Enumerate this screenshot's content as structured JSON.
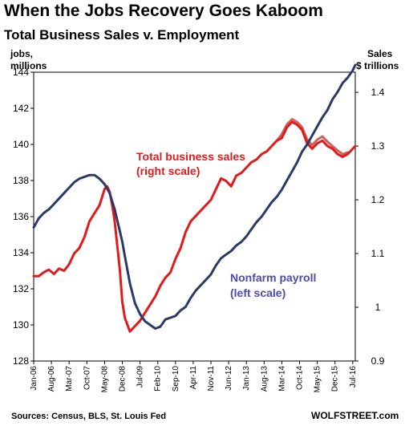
{
  "title": "When the Jobs Recovery Goes Kaboom",
  "subtitle": "Total Business Sales v. Employment",
  "source": "Sources: Census, BLS, St. Louis Fed",
  "brand": "WOLFSTREET.com",
  "chart_data": {
    "type": "line",
    "left_axis": {
      "label_line1": "jobs,",
      "label_line2": "millions",
      "ticks": [
        128,
        130,
        132,
        134,
        136,
        138,
        140,
        142,
        144
      ],
      "range": [
        128,
        144
      ]
    },
    "right_axis": {
      "label_line1": "Sales",
      "label_line2": "$ trillions",
      "ticks": [
        0.9,
        1,
        1.1,
        1.2,
        1.3,
        1.4
      ],
      "tick_labels": [
        "0.9",
        "1",
        "1.1",
        "1.2",
        "1.3",
        "1.4"
      ],
      "range": [
        0.9,
        1.4375
      ]
    },
    "x_ticks": [
      "Jan-06",
      "Aug-06",
      "Mar-07",
      "Oct-07",
      "May-08",
      "Dec-08",
      "Jul-09",
      "Feb-10",
      "Sep-10",
      "Apr-11",
      "Nov-11",
      "Jun-12",
      "Jan-13",
      "Aug-13",
      "Mar-14",
      "Oct-14",
      "May-15",
      "Dec-15",
      "Jul-16"
    ],
    "x_range": [
      "2006-01",
      "2016-08"
    ],
    "annotations": {
      "sales_line1": "Total business sales",
      "sales_line2": "(right scale)",
      "payroll_line1": "Nonfarm payroll",
      "payroll_line2": "(left scale)"
    },
    "series": [
      {
        "name": "Nonfarm payroll",
        "axis": "left",
        "color": "#2b3a67",
        "points": [
          [
            "2006-01",
            135.4
          ],
          [
            "2006-03",
            135.9
          ],
          [
            "2006-05",
            136.2
          ],
          [
            "2006-07",
            136.4
          ],
          [
            "2006-09",
            136.7
          ],
          [
            "2006-11",
            137.0
          ],
          [
            "2007-01",
            137.3
          ],
          [
            "2007-03",
            137.6
          ],
          [
            "2007-05",
            137.9
          ],
          [
            "2007-07",
            138.1
          ],
          [
            "2007-09",
            138.2
          ],
          [
            "2007-11",
            138.3
          ],
          [
            "2008-01",
            138.3
          ],
          [
            "2008-03",
            138.1
          ],
          [
            "2008-05",
            137.8
          ],
          [
            "2008-07",
            137.3
          ],
          [
            "2008-09",
            136.4
          ],
          [
            "2008-11",
            135.2
          ],
          [
            "2008-12",
            134.6
          ],
          [
            "2009-01",
            133.8
          ],
          [
            "2009-03",
            132.3
          ],
          [
            "2009-05",
            131.2
          ],
          [
            "2009-07",
            130.6
          ],
          [
            "2009-09",
            130.2
          ],
          [
            "2009-11",
            130.0
          ],
          [
            "2010-01",
            129.8
          ],
          [
            "2010-03",
            129.9
          ],
          [
            "2010-05",
            130.3
          ],
          [
            "2010-07",
            130.4
          ],
          [
            "2010-09",
            130.5
          ],
          [
            "2010-11",
            130.8
          ],
          [
            "2011-01",
            131.0
          ],
          [
            "2011-03",
            131.5
          ],
          [
            "2011-05",
            131.9
          ],
          [
            "2011-07",
            132.2
          ],
          [
            "2011-09",
            132.5
          ],
          [
            "2011-11",
            132.8
          ],
          [
            "2012-01",
            133.3
          ],
          [
            "2012-03",
            133.7
          ],
          [
            "2012-05",
            133.9
          ],
          [
            "2012-07",
            134.1
          ],
          [
            "2012-09",
            134.4
          ],
          [
            "2012-11",
            134.6
          ],
          [
            "2013-01",
            134.9
          ],
          [
            "2013-03",
            135.3
          ],
          [
            "2013-05",
            135.7
          ],
          [
            "2013-07",
            136.0
          ],
          [
            "2013-09",
            136.4
          ],
          [
            "2013-11",
            136.8
          ],
          [
            "2014-01",
            137.1
          ],
          [
            "2014-03",
            137.5
          ],
          [
            "2014-05",
            138.0
          ],
          [
            "2014-07",
            138.5
          ],
          [
            "2014-09",
            139.0
          ],
          [
            "2014-11",
            139.6
          ],
          [
            "2015-01",
            140.0
          ],
          [
            "2015-03",
            140.5
          ],
          [
            "2015-05",
            141.0
          ],
          [
            "2015-07",
            141.5
          ],
          [
            "2015-09",
            141.9
          ],
          [
            "2015-11",
            142.5
          ],
          [
            "2016-01",
            142.9
          ],
          [
            "2016-03",
            143.4
          ],
          [
            "2016-05",
            143.7
          ],
          [
            "2016-07",
            144.1
          ],
          [
            "2016-08",
            144.4
          ]
        ]
      },
      {
        "name": "Total business sales",
        "axis": "right",
        "color": "#e31a1c",
        "points": [
          [
            "2006-01",
            1.058
          ],
          [
            "2006-03",
            1.058
          ],
          [
            "2006-05",
            1.065
          ],
          [
            "2006-07",
            1.07
          ],
          [
            "2006-09",
            1.062
          ],
          [
            "2006-11",
            1.072
          ],
          [
            "2007-01",
            1.068
          ],
          [
            "2007-03",
            1.08
          ],
          [
            "2007-05",
            1.1
          ],
          [
            "2007-07",
            1.11
          ],
          [
            "2007-09",
            1.13
          ],
          [
            "2007-11",
            1.16
          ],
          [
            "2008-01",
            1.175
          ],
          [
            "2008-03",
            1.19
          ],
          [
            "2008-05",
            1.22
          ],
          [
            "2008-06",
            1.225
          ],
          [
            "2008-07",
            1.215
          ],
          [
            "2008-08",
            1.19
          ],
          [
            "2008-09",
            1.16
          ],
          [
            "2008-11",
            1.07
          ],
          [
            "2008-12",
            1.01
          ],
          [
            "2009-01",
            0.98
          ],
          [
            "2009-03",
            0.955
          ],
          [
            "2009-05",
            0.965
          ],
          [
            "2009-07",
            0.975
          ],
          [
            "2009-09",
            0.99
          ],
          [
            "2009-11",
            1.005
          ],
          [
            "2010-01",
            1.02
          ],
          [
            "2010-03",
            1.04
          ],
          [
            "2010-05",
            1.055
          ],
          [
            "2010-07",
            1.065
          ],
          [
            "2010-09",
            1.09
          ],
          [
            "2010-11",
            1.11
          ],
          [
            "2011-01",
            1.14
          ],
          [
            "2011-03",
            1.16
          ],
          [
            "2011-05",
            1.17
          ],
          [
            "2011-07",
            1.18
          ],
          [
            "2011-09",
            1.19
          ],
          [
            "2011-11",
            1.2
          ],
          [
            "2012-01",
            1.22
          ],
          [
            "2012-03",
            1.24
          ],
          [
            "2012-05",
            1.235
          ],
          [
            "2012-07",
            1.225
          ],
          [
            "2012-09",
            1.245
          ],
          [
            "2012-11",
            1.25
          ],
          [
            "2013-01",
            1.26
          ],
          [
            "2013-03",
            1.27
          ],
          [
            "2013-05",
            1.275
          ],
          [
            "2013-07",
            1.285
          ],
          [
            "2013-09",
            1.29
          ],
          [
            "2013-11",
            1.3
          ],
          [
            "2014-01",
            1.31
          ],
          [
            "2014-03",
            1.315
          ],
          [
            "2014-05",
            1.335
          ],
          [
            "2014-07",
            1.345
          ],
          [
            "2014-09",
            1.34
          ],
          [
            "2014-11",
            1.33
          ],
          [
            "2015-01",
            1.305
          ],
          [
            "2015-03",
            1.295
          ],
          [
            "2015-05",
            1.305
          ],
          [
            "2015-07",
            1.31
          ],
          [
            "2015-09",
            1.3
          ],
          [
            "2015-11",
            1.295
          ],
          [
            "2016-01",
            1.285
          ],
          [
            "2016-03",
            1.28
          ],
          [
            "2016-05",
            1.285
          ],
          [
            "2016-07",
            1.295
          ],
          [
            "2016-08",
            1.3
          ]
        ]
      },
      {
        "name": "Total business sales (prior estimate)",
        "axis": "right",
        "color": "#c9645f",
        "points": [
          [
            "2014-01",
            1.31
          ],
          [
            "2014-03",
            1.322
          ],
          [
            "2014-05",
            1.34
          ],
          [
            "2014-07",
            1.35
          ],
          [
            "2014-09",
            1.345
          ],
          [
            "2014-11",
            1.335
          ],
          [
            "2015-01",
            1.312
          ],
          [
            "2015-03",
            1.302
          ],
          [
            "2015-05",
            1.312
          ],
          [
            "2015-07",
            1.318
          ],
          [
            "2015-09",
            1.308
          ],
          [
            "2015-11",
            1.3
          ],
          [
            "2016-01",
            1.292
          ],
          [
            "2016-03",
            1.285
          ],
          [
            "2016-05",
            1.288
          ]
        ]
      }
    ]
  }
}
